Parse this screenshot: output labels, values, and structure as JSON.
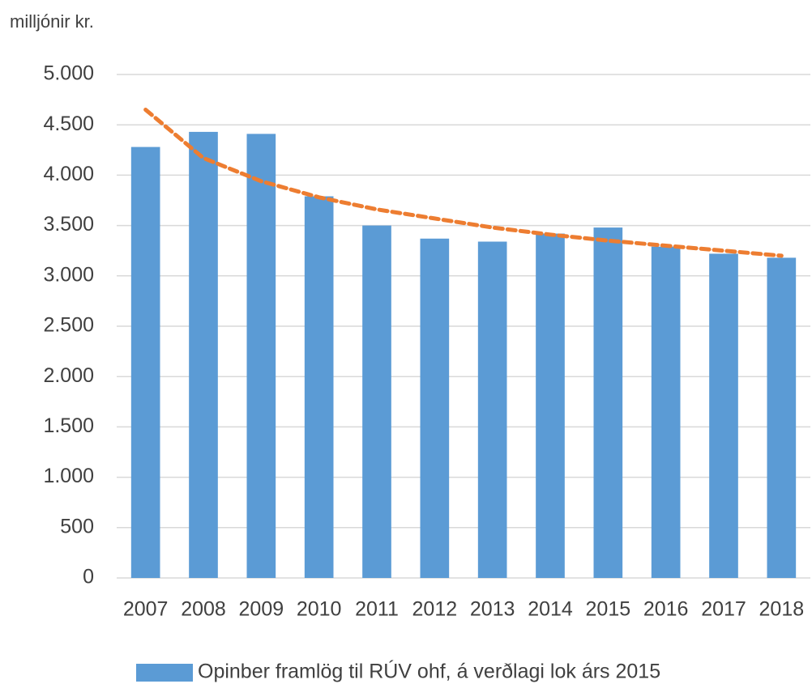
{
  "chart_data": {
    "type": "bar",
    "y_label": "milljónir kr.",
    "categories": [
      "2007",
      "2008",
      "2009",
      "2010",
      "2011",
      "2012",
      "2013",
      "2014",
      "2015",
      "2016",
      "2017",
      "2018"
    ],
    "series": [
      {
        "name": "Opinber framlög til RÚV ohf, á verðlagi lok árs 2015",
        "color": "#5b9bd5",
        "values": [
          4280,
          4430,
          4410,
          3790,
          3500,
          3370,
          3340,
          3420,
          3480,
          3290,
          3220,
          3180
        ]
      }
    ],
    "trendline": {
      "color": "#ed7d31",
      "values": [
        4650,
        4170,
        3940,
        3780,
        3660,
        3570,
        3480,
        3410,
        3350,
        3300,
        3250,
        3200
      ]
    },
    "ylim": [
      0,
      5000
    ],
    "yticks": [
      0,
      500,
      {
        "value": 1000,
        "label": "1.000"
      },
      {
        "value": 1500,
        "label": "1.500"
      },
      {
        "value": 2000,
        "label": "2.000"
      },
      {
        "value": 2500,
        "label": "2.500"
      },
      {
        "value": 3000,
        "label": "3.000"
      },
      {
        "value": 3500,
        "label": "3.500"
      },
      {
        "value": 4000,
        "label": "4.000"
      },
      {
        "value": 4500,
        "label": "4.500"
      },
      {
        "value": 5000,
        "label": "5.000"
      }
    ],
    "grid": true,
    "legend": "bottom"
  }
}
